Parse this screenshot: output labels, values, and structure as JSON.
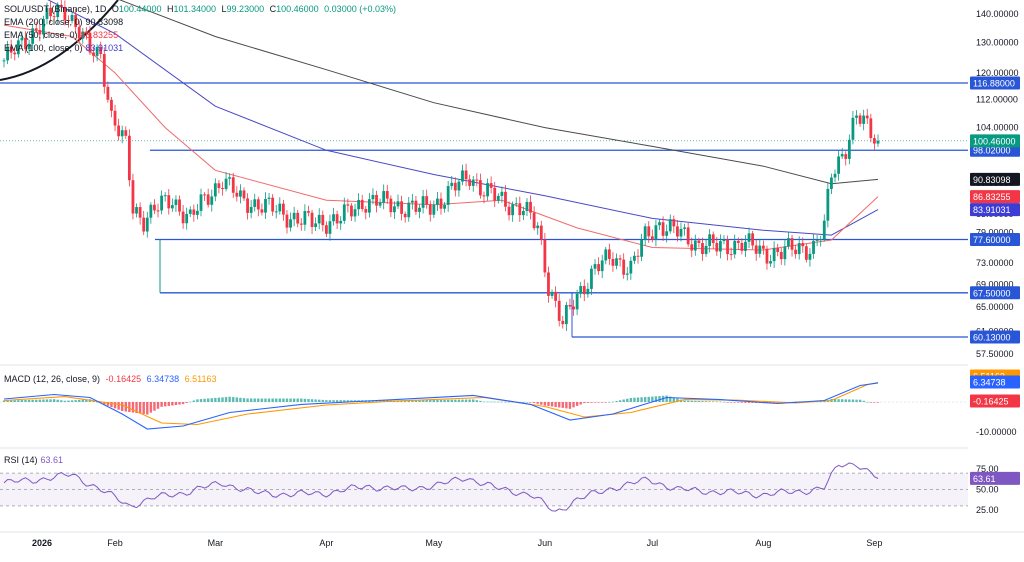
{
  "header": {
    "symbol_label": "SOL/USDT (Binance), 1D",
    "ohlc": [
      {
        "k": "O",
        "v": "100.44000"
      },
      {
        "k": "H",
        "v": "101.34000"
      },
      {
        "k": "L",
        "v": "99.23000"
      },
      {
        "k": "C",
        "v": "100.46000"
      }
    ],
    "change": "0.03000 (+0.03%)"
  },
  "legend": {
    "ema200": {
      "label": "EMA (200, close, 0)",
      "value": "90.83098",
      "color": "#131722"
    },
    "ema50": {
      "label": "EMA (50, close, 0)",
      "value": "86.83255",
      "color": "#f23645"
    },
    "ema100": {
      "label": "EMA (100, close, 0)",
      "value": "83.91031",
      "color": "#3d3dd6"
    },
    "macd": {
      "label": "MACD (12, 26, close, 9)",
      "hist": "-0.16425",
      "macd": "6.34738",
      "signal": "6.51163"
    },
    "rsi": {
      "label": "RSI (14)",
      "value": "63.61"
    }
  },
  "colors": {
    "up": "#089981",
    "down": "#f23645",
    "hline": "#2856d6",
    "ema200": "#4a4a4a",
    "ema50": "#f06b6b",
    "ema100": "#4848c8",
    "macd": "#2962ff",
    "signal": "#ff9800",
    "rsi": "#7e57c2"
  },
  "chart_data": [
    {
      "type": "candlestick",
      "title": "SOL/USDT",
      "y_axis_ticks": [
        "140.00000",
        "130.00000",
        "120.00000",
        "112.00000",
        "104.00000",
        "98.00000",
        "90.00000",
        "83.00000",
        "79.00000",
        "73.00000",
        "69.00000",
        "65.00000",
        "61.00000",
        "57.50000"
      ],
      "x_ticks": [
        "2026",
        "Feb",
        "Mar",
        "Apr",
        "May",
        "Jun",
        "Jul",
        "Aug",
        "Sep"
      ],
      "x_range": [
        "2026-01-01",
        "2026-09-02"
      ],
      "y_scale": "log",
      "ylim": [
        55.5,
        146
      ],
      "horizontal_levels": [
        116.88,
        98.02,
        77.6,
        67.5,
        60.13
      ],
      "level_labels": [
        "116.88000",
        "98.02000",
        "77.60000",
        "67.50000",
        "60.13000"
      ],
      "price_tags": [
        {
          "label": "100.46000",
          "value": 100.46,
          "color": "#089981"
        },
        {
          "label": "90.83098",
          "value": 90.83,
          "color": "#131722"
        },
        {
          "label": "86.83255",
          "value": 86.83,
          "color": "#f23645"
        },
        {
          "label": "83.91031",
          "value": 83.91,
          "color": "#3d3dd6"
        }
      ],
      "close_path": [
        [
          "2026-01-01",
          124
        ],
        [
          "2026-01-05",
          128
        ],
        [
          "2026-01-10",
          135
        ],
        [
          "2026-01-15",
          140
        ],
        [
          "2026-01-18",
          142
        ],
        [
          "2026-01-21",
          136
        ],
        [
          "2026-01-25",
          127
        ],
        [
          "2026-01-28",
          126
        ],
        [
          "2026-01-31",
          107
        ],
        [
          "2026-02-04",
          99
        ],
        [
          "2026-02-06",
          84
        ],
        [
          "2026-02-09",
          82
        ],
        [
          "2026-02-12",
          84
        ],
        [
          "2026-02-17",
          86
        ],
        [
          "2026-02-22",
          82
        ],
        [
          "2026-02-27",
          87
        ],
        [
          "2026-03-03",
          91
        ],
        [
          "2026-03-08",
          86
        ],
        [
          "2026-03-14",
          85
        ],
        [
          "2026-03-20",
          83
        ],
        [
          "2026-03-28",
          81
        ],
        [
          "2026-04-05",
          82
        ],
        [
          "2026-04-12",
          86
        ],
        [
          "2026-04-20",
          85
        ],
        [
          "2026-04-27",
          84
        ],
        [
          "2026-05-03",
          86
        ],
        [
          "2026-05-07",
          89
        ],
        [
          "2026-05-11",
          92
        ],
        [
          "2026-05-15",
          88
        ],
        [
          "2026-05-20",
          86
        ],
        [
          "2026-05-26",
          84
        ],
        [
          "2026-05-30",
          80
        ],
        [
          "2026-06-02",
          69
        ],
        [
          "2026-06-06",
          62
        ],
        [
          "2026-06-10",
          67
        ],
        [
          "2026-06-15",
          72
        ],
        [
          "2026-06-20",
          74
        ],
        [
          "2026-06-25",
          72
        ],
        [
          "2026-06-29",
          78
        ],
        [
          "2026-07-03",
          81
        ],
        [
          "2026-07-08",
          79
        ],
        [
          "2026-07-13",
          77
        ],
        [
          "2026-07-19",
          76
        ],
        [
          "2026-07-26",
          77
        ],
        [
          "2026-08-01",
          75
        ],
        [
          "2026-08-06",
          75
        ],
        [
          "2026-08-11",
          76
        ],
        [
          "2026-08-15",
          76
        ],
        [
          "2026-08-18",
          80
        ],
        [
          "2026-08-20",
          92
        ],
        [
          "2026-08-24",
          99
        ],
        [
          "2026-08-27",
          107
        ],
        [
          "2026-08-30",
          104
        ],
        [
          "2026-09-02",
          100.46
        ]
      ],
      "ema200": [
        [
          "2026-01-04",
          179
        ],
        [
          "2026-02-01",
          146
        ],
        [
          "2026-03-01",
          132
        ],
        [
          "2026-04-01",
          121
        ],
        [
          "2026-05-01",
          111
        ],
        [
          "2026-06-01",
          104
        ],
        [
          "2026-07-01",
          99
        ],
        [
          "2026-08-01",
          94
        ],
        [
          "2026-08-20",
          89.8
        ],
        [
          "2026-09-02",
          90.83
        ]
      ],
      "ema50": [
        [
          "2026-01-01",
          136
        ],
        [
          "2026-01-20",
          132
        ],
        [
          "2026-02-01",
          120
        ],
        [
          "2026-02-15",
          104
        ],
        [
          "2026-03-01",
          93
        ],
        [
          "2026-04-01",
          86
        ],
        [
          "2026-05-01",
          85
        ],
        [
          "2026-05-20",
          86
        ],
        [
          "2026-06-10",
          80
        ],
        [
          "2026-07-01",
          76
        ],
        [
          "2026-08-01",
          75.5
        ],
        [
          "2026-08-20",
          77.5
        ],
        [
          "2026-09-02",
          86.83
        ]
      ],
      "ema100": [
        [
          "2026-01-01",
          154
        ],
        [
          "2026-02-01",
          133
        ],
        [
          "2026-03-01",
          110
        ],
        [
          "2026-04-01",
          98
        ],
        [
          "2026-05-01",
          92
        ],
        [
          "2026-06-01",
          87
        ],
        [
          "2026-07-01",
          82
        ],
        [
          "2026-08-01",
          79.5
        ],
        [
          "2026-08-20",
          78.5
        ],
        [
          "2026-09-02",
          83.91
        ]
      ]
    },
    {
      "type": "line",
      "title": "MACD (12, 26, close, 9)",
      "y_axis_ticks": [
        "-10.00000"
      ],
      "ylim": [
        -12,
        12
      ],
      "series": [
        {
          "name": "MACD",
          "points": [
            [
              "2026-01-01",
              1.0
            ],
            [
              "2026-01-15",
              2.5
            ],
            [
              "2026-01-25",
              1.5
            ],
            [
              "2026-02-03",
              -4.0
            ],
            [
              "2026-02-10",
              -9.0
            ],
            [
              "2026-02-20",
              -8.0
            ],
            [
              "2026-03-05",
              -3.5
            ],
            [
              "2026-03-25",
              -0.8
            ],
            [
              "2026-04-15",
              0.5
            ],
            [
              "2026-05-12",
              2.2
            ],
            [
              "2026-05-28",
              -0.8
            ],
            [
              "2026-06-08",
              -6.0
            ],
            [
              "2026-06-20",
              -4.0
            ],
            [
              "2026-07-05",
              1.5
            ],
            [
              "2026-07-20",
              0.8
            ],
            [
              "2026-08-05",
              -0.5
            ],
            [
              "2026-08-18",
              0.5
            ],
            [
              "2026-08-28",
              5.5
            ],
            [
              "2026-09-02",
              6.35
            ]
          ]
        },
        {
          "name": "Signal",
          "points": [
            [
              "2026-01-01",
              0.5
            ],
            [
              "2026-01-18",
              1.8
            ],
            [
              "2026-02-03",
              -1.0
            ],
            [
              "2026-02-14",
              -7.0
            ],
            [
              "2026-02-24",
              -7.5
            ],
            [
              "2026-03-10",
              -4.0
            ],
            [
              "2026-04-01",
              -1.0
            ],
            [
              "2026-04-20",
              0.3
            ],
            [
              "2026-05-15",
              1.5
            ],
            [
              "2026-06-01",
              -1.5
            ],
            [
              "2026-06-12",
              -5.0
            ],
            [
              "2026-06-25",
              -3.5
            ],
            [
              "2026-07-10",
              0.8
            ],
            [
              "2026-07-25",
              0.6
            ],
            [
              "2026-08-10",
              -0.3
            ],
            [
              "2026-08-20",
              0.5
            ],
            [
              "2026-08-30",
              5.8
            ],
            [
              "2026-09-02",
              6.51
            ]
          ]
        }
      ],
      "histogram_dates_sample": "daily bars: MACD minus Signal"
    },
    {
      "type": "line",
      "title": "RSI (14)",
      "y_axis_ticks": [
        "75.00",
        "50.00",
        "25.00"
      ],
      "ylim": [
        15,
        90
      ],
      "band": [
        30,
        70
      ],
      "midline": 50,
      "series": [
        {
          "name": "RSI",
          "points": [
            [
              "2026-01-01",
              58
            ],
            [
              "2026-01-10",
              62
            ],
            [
              "2026-01-20",
              68
            ],
            [
              "2026-01-28",
              50
            ],
            [
              "2026-02-05",
              30
            ],
            [
              "2026-02-12",
              40
            ],
            [
              "2026-02-20",
              46
            ],
            [
              "2026-03-03",
              58
            ],
            [
              "2026-03-12",
              46
            ],
            [
              "2026-03-22",
              44
            ],
            [
              "2026-04-02",
              46
            ],
            [
              "2026-04-12",
              54
            ],
            [
              "2026-04-22",
              50
            ],
            [
              "2026-05-03",
              56
            ],
            [
              "2026-05-10",
              65
            ],
            [
              "2026-05-18",
              52
            ],
            [
              "2026-05-28",
              44
            ],
            [
              "2026-06-04",
              22
            ],
            [
              "2026-06-10",
              38
            ],
            [
              "2026-06-20",
              52
            ],
            [
              "2026-06-30",
              62
            ],
            [
              "2026-07-08",
              50
            ],
            [
              "2026-07-20",
              47
            ],
            [
              "2026-08-01",
              44
            ],
            [
              "2026-08-12",
              48
            ],
            [
              "2026-08-18",
              52
            ],
            [
              "2026-08-22",
              80
            ],
            [
              "2026-08-27",
              82
            ],
            [
              "2026-08-30",
              72
            ],
            [
              "2026-09-02",
              63.61
            ]
          ]
        }
      ]
    }
  ]
}
